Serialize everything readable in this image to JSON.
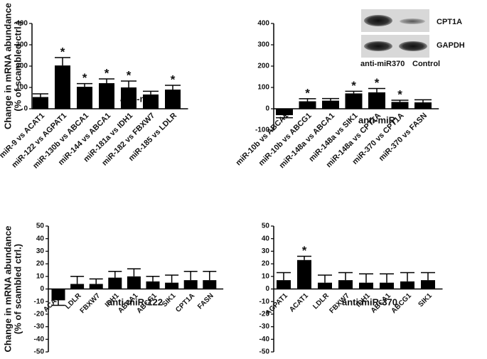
{
  "chart_data": [
    {
      "type": "bar",
      "ylabel": [
        "Change in mRNA abundance",
        "(% of scambled ctrl.)"
      ],
      "annotation": "anti-miR",
      "categories": [
        "miR-9 vs ACAT1",
        "miR-122 vs AGPAT1",
        "miR-130b vs ABCA1",
        "miR-144 vs ABCA1",
        "miR-181a vs IDH1",
        "miR-182 vs FBXW7",
        "miR-185 vs LDLR"
      ],
      "values": [
        55,
        203,
        103,
        120,
        100,
        67,
        90
      ],
      "errors": [
        15,
        37,
        15,
        20,
        30,
        15,
        20
      ],
      "significance": [
        null,
        "*",
        "*",
        "*",
        "*",
        null,
        "*"
      ],
      "color": "#000000",
      "ylim": [
        0,
        400
      ],
      "yticks": [
        0,
        100,
        200,
        300,
        400
      ],
      "grid": false
    },
    {
      "type": "bar",
      "annotation": "anti-miR",
      "categories": [
        "miR-10b vs ABCA1",
        "miR-10b vs ABCG1",
        "miR-148a vs ABCA1",
        "miR-148a vs SIK1",
        "miR-148a vs CPT1A",
        "miR-370 vs CPT1A",
        "miR-370 vs FASN"
      ],
      "values": [
        -30,
        35,
        38,
        72,
        77,
        32,
        30
      ],
      "errors": [
        12,
        12,
        10,
        10,
        18,
        8,
        12
      ],
      "significance": [
        null,
        "*",
        null,
        "*",
        "*",
        "*",
        null
      ],
      "color": "#000000",
      "ylim": [
        -100,
        400
      ],
      "yticks": [
        -100,
        0,
        100,
        200,
        300,
        400
      ],
      "grid": false,
      "blot": {
        "bands": [
          "CPT1A",
          "GAPDH"
        ],
        "lanes": [
          "anti-miR370",
          "Control"
        ]
      }
    },
    {
      "type": "bar",
      "ylabel": [
        "Change in mRNA abundance",
        "(% of scambled ctrl.)"
      ],
      "annotation": "anti-miR-122",
      "categories": [
        "ACAT1",
        "LDLR",
        "FBXW7",
        "IDH1",
        "ABCA1",
        "ABCG1",
        "SIK1",
        "CPT1A",
        "FASN"
      ],
      "values": [
        -9,
        4,
        4,
        9,
        10,
        6,
        5,
        7,
        7
      ],
      "errors": [
        4,
        6,
        4,
        5,
        6,
        4,
        6,
        7,
        7
      ],
      "significance": [
        null,
        null,
        null,
        null,
        null,
        null,
        null,
        null,
        null
      ],
      "color": "#000000",
      "ylim": [
        -50,
        50
      ],
      "yticks": [
        -50,
        -40,
        -30,
        -20,
        -10,
        0,
        10,
        20,
        30,
        40,
        50
      ],
      "grid": false
    },
    {
      "type": "bar",
      "annotation": "anti-miR-370",
      "categories": [
        "AGPAT1",
        "ACAT1",
        "LDLR",
        "FBXW7",
        "IDH1",
        "ABCA1",
        "ABCG1",
        "SIK1"
      ],
      "values": [
        7,
        23,
        5,
        7,
        5,
        5,
        6,
        7
      ],
      "errors": [
        6,
        3,
        6,
        6,
        7,
        7,
        7,
        6
      ],
      "significance": [
        null,
        "*",
        null,
        null,
        null,
        null,
        null,
        null
      ],
      "color": "#000000",
      "ylim": [
        -50,
        50
      ],
      "yticks": [
        -50,
        -40,
        -30,
        -20,
        -10,
        0,
        10,
        20,
        30,
        40,
        50
      ],
      "grid": false
    }
  ]
}
